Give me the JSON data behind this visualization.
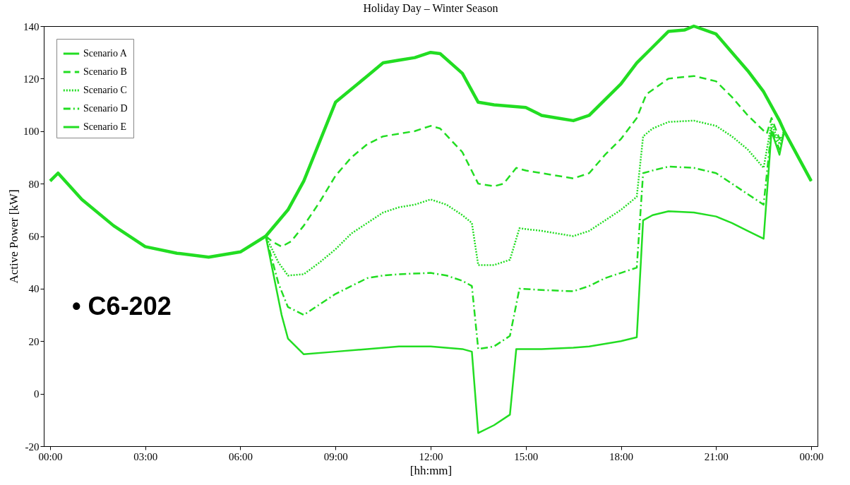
{
  "chart_data": {
    "type": "line",
    "title": "Holiday Day – Winter Season",
    "xlabel": "[hh:mm]",
    "ylabel": "Active Power [kW]",
    "xlim": [
      -0.2,
      24.2
    ],
    "ylim": [
      -20,
      140
    ],
    "xticks": [
      {
        "value": 0,
        "label": "00:00"
      },
      {
        "value": 3,
        "label": "03:00"
      },
      {
        "value": 6,
        "label": "06:00"
      },
      {
        "value": 9,
        "label": "09:00"
      },
      {
        "value": 12,
        "label": "12:00"
      },
      {
        "value": 15,
        "label": "15:00"
      },
      {
        "value": 18,
        "label": "18:00"
      },
      {
        "value": 21,
        "label": "21:00"
      },
      {
        "value": 24,
        "label": "00:00"
      }
    ],
    "yticks": [
      -20,
      0,
      20,
      40,
      60,
      80,
      100,
      120,
      140
    ],
    "grid": false,
    "legend": "top left",
    "marker": "none",
    "annotations": [
      "• C6-202"
    ],
    "series": [
      {
        "name": "Scenario A",
        "color": "#22dd22",
        "line_style": "solid",
        "x": [
          0,
          0.25,
          1,
          2,
          3,
          4,
          5,
          6,
          6.8,
          7.5,
          8,
          9,
          10,
          10.5,
          11,
          11.5,
          12,
          12.3,
          13,
          13.5,
          14,
          15,
          15.5,
          16,
          16.5,
          17,
          17.5,
          18,
          18.5,
          19,
          19.5,
          20,
          20.3,
          21,
          21.5,
          22,
          22.5,
          23,
          23.15,
          24
        ],
        "values": [
          81,
          84,
          74,
          64,
          56,
          53.5,
          52,
          54,
          60,
          70,
          81,
          111,
          121,
          126,
          127,
          128,
          130,
          129.5,
          122,
          111,
          110,
          109,
          106,
          105,
          104,
          106,
          112,
          118,
          126,
          132,
          138,
          138.5,
          140,
          137,
          130,
          123,
          115,
          104,
          100,
          81
        ]
      },
      {
        "name": "Scenario B",
        "color": "#22dd22",
        "line_style": "dashed",
        "x": [
          6.8,
          7,
          7.3,
          7.6,
          8,
          8.5,
          9,
          9.5,
          10,
          10.5,
          11,
          11.5,
          12,
          12.3,
          13,
          13.5,
          14,
          14.3,
          14.7,
          15,
          16,
          16.5,
          17,
          17.5,
          18,
          18.5,
          18.8,
          19.5,
          20.3,
          21,
          21.5,
          22,
          22.6,
          22.75,
          23,
          23.15,
          24
        ],
        "values": [
          60,
          58,
          56,
          58,
          64,
          73,
          83,
          90,
          95,
          98,
          99,
          100,
          102,
          101,
          92,
          80,
          79,
          80,
          86,
          85,
          83,
          82,
          84,
          91,
          97,
          105,
          114,
          120,
          121,
          119,
          113,
          106,
          99,
          105,
          97,
          100,
          81
        ]
      },
      {
        "name": "Scenario C",
        "color": "#22dd22",
        "line_style": "dotted",
        "x": [
          6.8,
          7.2,
          7.5,
          8,
          8.5,
          9,
          9.5,
          10,
          10.5,
          11,
          11.5,
          12,
          12.5,
          13,
          13.3,
          13.5,
          14,
          14.5,
          14.8,
          15.5,
          16,
          16.5,
          17,
          17.5,
          18,
          18.5,
          18.7,
          19,
          19.5,
          20.3,
          21,
          21.5,
          22,
          22.5,
          22.75,
          23,
          23.15,
          24
        ],
        "values": [
          60,
          50,
          45,
          45.5,
          50,
          55,
          61,
          65,
          69,
          71,
          72,
          74,
          72,
          68,
          65,
          49,
          49,
          51,
          63,
          62,
          61,
          60,
          62,
          66,
          70,
          75,
          98,
          101,
          103.5,
          104,
          102,
          98,
          93,
          86,
          103,
          95,
          100,
          81
        ]
      },
      {
        "name": "Scenario D",
        "color": "#22dd22",
        "line_style": "dashdot",
        "x": [
          6.8,
          7.2,
          7.5,
          8,
          8.5,
          9,
          9.5,
          10,
          10.5,
          11,
          12,
          12.5,
          13,
          13.3,
          13.5,
          14,
          14.5,
          14.8,
          15.5,
          16.5,
          17,
          17.5,
          18,
          18.5,
          18.7,
          19,
          19.5,
          20.3,
          21,
          21.5,
          22,
          22.5,
          22.75,
          23,
          23.15,
          24
        ],
        "values": [
          60,
          42,
          33,
          30,
          34,
          38,
          41,
          44,
          45,
          45.5,
          46,
          45,
          43,
          41,
          17,
          18,
          22,
          40,
          39.5,
          39,
          41,
          44,
          46,
          48,
          84,
          85,
          86.5,
          86,
          84,
          80,
          76,
          72,
          101,
          93,
          100,
          81
        ]
      },
      {
        "name": "Scenario E",
        "color": "#22dd22",
        "line_style": "solid",
        "x": [
          6.8,
          7.3,
          7.5,
          8,
          9,
          10,
          11,
          12,
          13,
          13.3,
          13.5,
          14,
          14.5,
          14.7,
          15.5,
          16.5,
          17,
          18,
          18.5,
          18.7,
          19,
          19.5,
          20.3,
          21,
          21.5,
          22,
          22.5,
          22.75,
          23,
          23.15,
          24
        ],
        "values": [
          60,
          30,
          21,
          15,
          16,
          17,
          18,
          18,
          17,
          16,
          -15,
          -12,
          -8,
          17,
          17,
          17.5,
          18,
          20,
          21.5,
          66,
          68,
          69.5,
          69,
          67.5,
          65,
          62,
          59,
          100,
          91,
          100,
          81
        ]
      }
    ]
  }
}
